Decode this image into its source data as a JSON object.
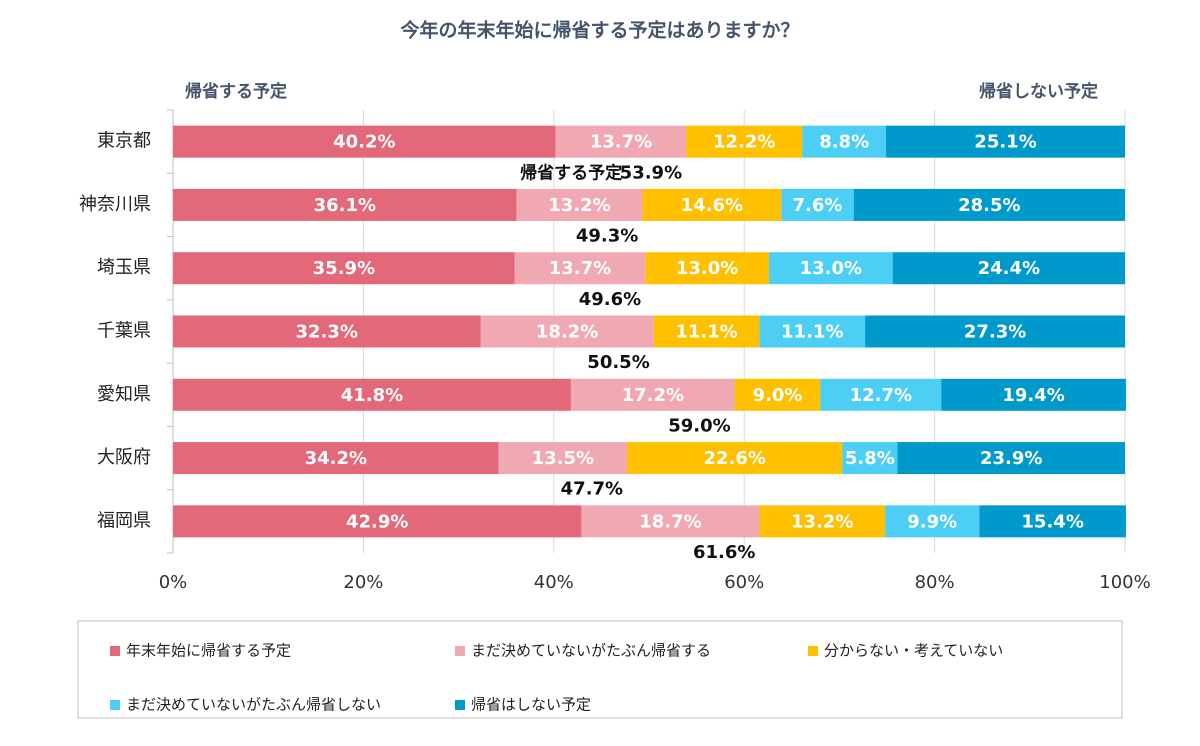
{
  "chart_data": {
    "type": "stacked-barh",
    "title": "今年の年末年始に帰省する予定はありますか？",
    "left_label": "帰省する予定",
    "right_label": "帰省しない予定",
    "categories": [
      "東京都",
      "神奈川県",
      "埼玉県",
      "千葉県",
      "愛知県",
      "大阪府",
      "福岡県"
    ],
    "series": [
      {
        "name": "年末年始に帰省する予定",
        "color": "#e3697a",
        "values": [
          40.2,
          36.1,
          35.9,
          32.3,
          41.8,
          34.2,
          42.9
        ],
        "value_labels": [
          "40.2%",
          "36.1%",
          "35.9%",
          "32.3%",
          "41.8%",
          "34.2%",
          "42.9%"
        ]
      },
      {
        "name": "まだ決めていないがたぶん帰省する",
        "color": "#f0a8b3",
        "values": [
          13.7,
          13.2,
          13.7,
          18.2,
          17.2,
          13.5,
          18.7
        ],
        "value_labels": [
          "13.7%",
          "13.2%",
          "13.7%",
          "18.2%",
          "17.2%",
          "13.5%",
          "18.7%"
        ]
      },
      {
        "name": "分からない・考えていない",
        "color": "#ffc000",
        "values": [
          12.2,
          14.6,
          13.0,
          11.1,
          9.0,
          22.6,
          13.2
        ],
        "value_labels": [
          "12.2%",
          "14.6%",
          "13.0%",
          "11.1%",
          "9.0%",
          "22.6%",
          "13.2%"
        ]
      },
      {
        "name": "まだ決めていないがたぶん帰省しない",
        "color": "#4dcff5",
        "values": [
          8.8,
          7.6,
          13.0,
          11.1,
          12.7,
          5.8,
          9.9
        ],
        "value_labels": [
          "8.8%",
          "7.6%",
          "13.0%",
          "11.1%",
          "12.7%",
          "5.8%",
          "9.9%"
        ]
      },
      {
        "name": "帰省はしない予定",
        "color": "#0099cc",
        "values": [
          25.1,
          28.5,
          24.4,
          27.3,
          19.4,
          23.9,
          15.4
        ],
        "value_labels": [
          "25.1%",
          "28.5%",
          "24.4%",
          "27.3%",
          "19.4%",
          "23.9%",
          "15.4%"
        ]
      }
    ],
    "totals": {
      "label": "帰省する予定",
      "values": [
        53.9,
        49.3,
        49.6,
        50.5,
        59.0,
        47.7,
        61.6
      ],
      "value_labels": [
        "53.9%",
        "49.3%",
        "49.6%",
        "50.5%",
        "59.0%",
        "47.7%",
        "61.6%"
      ]
    },
    "xlim": [
      0,
      100
    ],
    "xticks": [
      {
        "value": 0,
        "label": "0%"
      },
      {
        "value": 20,
        "label": "20%"
      },
      {
        "value": 40,
        "label": "40%"
      },
      {
        "value": 60,
        "label": "60%"
      },
      {
        "value": 80,
        "label": "80%"
      },
      {
        "value": 100,
        "label": "100%"
      }
    ],
    "grid": true,
    "legend": "bottom"
  }
}
